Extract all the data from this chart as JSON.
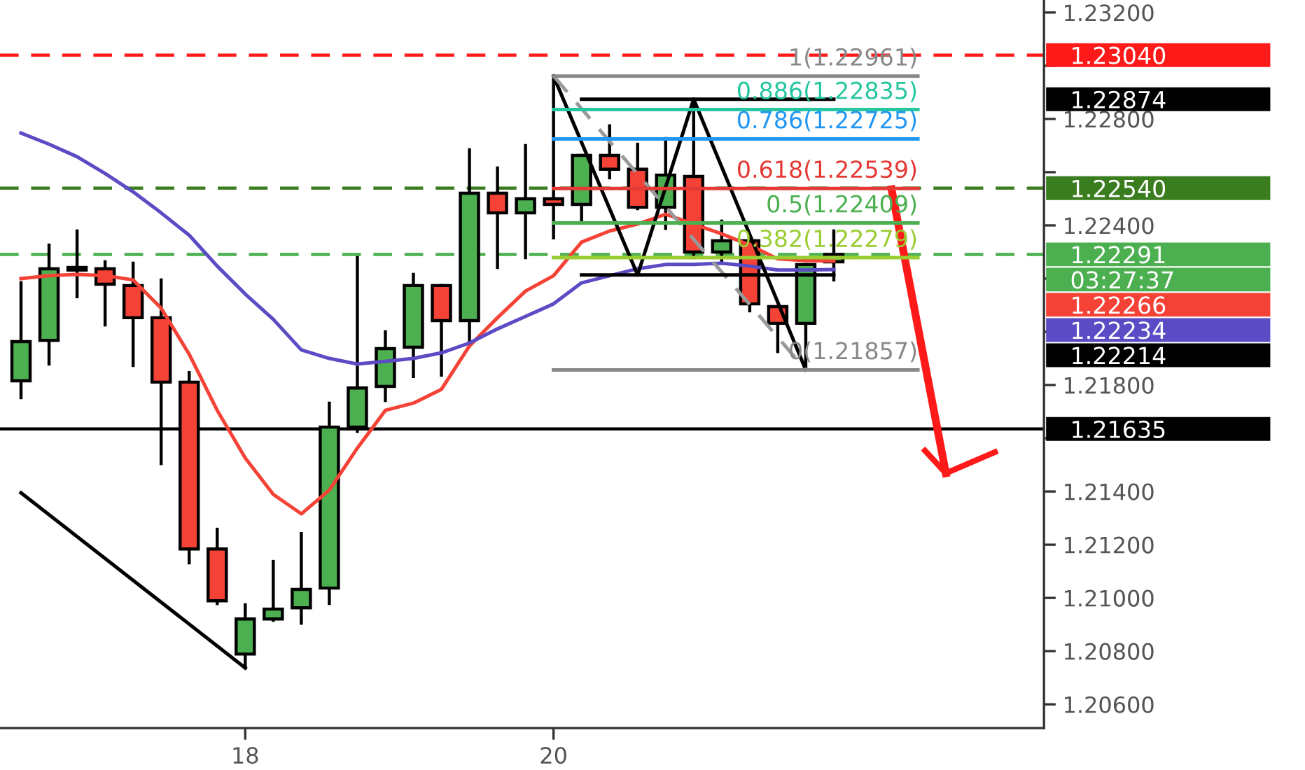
{
  "chart_data": {
    "type": "candlestick",
    "categories": [
      null,
      null,
      null,
      null,
      null,
      null,
      null,
      null,
      "18",
      null,
      null,
      null,
      null,
      null,
      null,
      null,
      null,
      null,
      null,
      "20",
      null,
      null,
      null,
      null,
      null,
      null,
      null,
      null,
      null,
      null,
      null,
      null,
      null,
      null,
      null,
      null,
      null
    ],
    "ohlc": [
      [
        1.21816,
        1.22184,
        1.21753,
        1.21963
      ],
      [
        1.21968,
        1.22326,
        1.21879,
        1.22237
      ],
      [
        1.22232,
        1.22379,
        1.22132,
        1.22242
      ],
      [
        1.22237,
        1.22263,
        1.22026,
        1.22179
      ],
      [
        1.22174,
        1.22258,
        1.21874,
        1.22053
      ],
      [
        1.22053,
        1.22195,
        1.21505,
        1.21811
      ],
      [
        1.21811,
        1.21847,
        1.21132,
        1.21184
      ],
      [
        1.21184,
        1.21258,
        1.20979,
        1.20989
      ],
      [
        1.20789,
        1.20974,
        1.20737,
        1.20921
      ],
      [
        1.20921,
        1.21137,
        1.20916,
        1.20958
      ],
      [
        1.20963,
        1.21242,
        1.20905,
        1.21032
      ],
      [
        1.21037,
        1.21732,
        1.20979,
        1.21642
      ],
      [
        1.21642,
        1.22279,
        1.21626,
        1.21789
      ],
      [
        1.21795,
        1.22,
        1.21742,
        1.21937
      ],
      [
        1.21942,
        1.22216,
        1.21832,
        1.22174
      ],
      [
        1.22174,
        1.22174,
        1.21837,
        1.22042
      ],
      [
        1.22042,
        1.22684,
        1.21947,
        1.22521
      ],
      [
        1.22521,
        1.22616,
        1.22242,
        1.22447
      ],
      [
        1.22447,
        1.227,
        1.22279,
        1.225
      ],
      [
        1.225,
        1.22961,
        1.22353,
        1.22479
      ],
      [
        1.22479,
        1.22663,
        1.22421,
        1.22663
      ],
      [
        1.22663,
        1.22774,
        1.22579,
        1.22611
      ],
      [
        1.22611,
        1.22705,
        1.22463,
        1.22468
      ],
      [
        1.22468,
        1.22726,
        1.22389,
        1.22589
      ],
      [
        1.22584,
        1.22874,
        1.22279,
        1.223
      ],
      [
        1.223,
        1.22416,
        1.22263,
        1.22342
      ],
      [
        1.22342,
        1.22353,
        1.22079,
        1.22105
      ],
      [
        1.22095,
        1.22095,
        1.21926,
        1.22032
      ],
      [
        1.22032,
        1.22253,
        1.21857,
        1.22253
      ],
      [
        1.22263,
        1.22379,
        1.22195,
        1.22291
      ],
      null,
      null,
      null,
      null,
      null,
      null,
      null
    ],
    "colors": [
      "#4caf50",
      "#4caf50",
      "#4caf50",
      "#f44336",
      "#f44336",
      "#f44336",
      "#f44336",
      "#f44336",
      "#4caf50",
      "#4caf50",
      "#4caf50",
      "#4caf50",
      "#4caf50",
      "#4caf50",
      "#4caf50",
      "#f44336",
      "#4caf50",
      "#f44336",
      "#4caf50",
      "#f44336",
      "#4caf50",
      "#f44336",
      "#f44336",
      "#4caf50",
      "#f44336",
      "#4caf50",
      "#f44336",
      "#f44336",
      "#4caf50",
      "#4caf50",
      null,
      null,
      null,
      null,
      null,
      null,
      null
    ],
    "series": [
      {
        "type": "line",
        "color": "#f44336",
        "values": [
          1.222,
          1.22211,
          1.22216,
          1.22211,
          1.22195,
          1.22089,
          1.21916,
          1.21705,
          1.21526,
          1.21389,
          1.21316,
          1.21405,
          1.21563,
          1.21705,
          1.21732,
          1.21784,
          1.21947,
          1.22053,
          1.22153,
          1.22211,
          1.22337,
          1.22379,
          1.22405,
          1.22442,
          1.22405,
          1.22368,
          1.22326,
          1.22274,
          1.22268,
          1.22266,
          null,
          null,
          null,
          null,
          null,
          null,
          null
        ]
      },
      {
        "type": "line",
        "color": "#5b4bc4",
        "values": [
          1.22747,
          1.22705,
          1.22658,
          1.22595,
          1.22526,
          1.22447,
          1.22363,
          1.22247,
          1.22142,
          1.22047,
          1.21932,
          1.219,
          1.21879,
          1.21889,
          1.219,
          1.21921,
          1.21958,
          1.22011,
          1.22058,
          1.22105,
          1.22184,
          1.22211,
          1.22237,
          1.22253,
          1.22253,
          1.22258,
          1.22247,
          1.22232,
          1.22232,
          1.22234,
          null,
          null,
          null,
          null,
          null,
          null,
          null
        ]
      },
      {
        "type": "line",
        "color": "#000000",
        "values": [
          1.21395,
          null,
          null,
          null,
          null,
          null,
          null,
          null,
          1.20737,
          null,
          null,
          null,
          null,
          null,
          null,
          null,
          null,
          null,
          null,
          null,
          null,
          null,
          null,
          null,
          null,
          null,
          null,
          null,
          null,
          null,
          null,
          null,
          null,
          null,
          null,
          null,
          null
        ]
      },
      {
        "type": "line",
        "color": "#000000",
        "values": [
          null,
          null,
          null,
          null,
          null,
          null,
          null,
          null,
          null,
          null,
          null,
          null,
          null,
          null,
          null,
          null,
          null,
          null,
          null,
          1.22961,
          null,
          null,
          1.22214,
          null,
          1.22874,
          null,
          null,
          null,
          1.21857,
          null,
          null,
          null,
          null,
          null,
          null,
          null,
          null
        ]
      },
      {
        "type": "line",
        "color": "#999999",
        "line_style": "dashed",
        "values": [
          null,
          null,
          null,
          null,
          null,
          null,
          null,
          null,
          null,
          null,
          null,
          null,
          null,
          null,
          null,
          null,
          null,
          null,
          null,
          1.22961,
          null,
          null,
          null,
          null,
          null,
          null,
          null,
          null,
          1.21857,
          null,
          null,
          null,
          null,
          null,
          null,
          null,
          null
        ]
      },
      {
        "type": "line",
        "color": "#000000",
        "values": [
          null,
          null,
          null,
          null,
          null,
          null,
          null,
          null,
          null,
          null,
          null,
          null,
          null,
          null,
          null,
          null,
          null,
          null,
          null,
          null,
          1.22874,
          1.22874,
          1.22874,
          1.22874,
          1.22874,
          1.22874,
          1.22874,
          1.22874,
          1.22874,
          1.22874,
          null,
          null,
          null,
          null,
          null,
          null,
          null
        ]
      },
      {
        "type": "line",
        "color": "#000000",
        "values": [
          null,
          null,
          null,
          null,
          null,
          null,
          null,
          null,
          null,
          null,
          null,
          null,
          null,
          null,
          null,
          null,
          null,
          null,
          null,
          null,
          1.22214,
          1.22214,
          1.22214,
          1.22214,
          1.22214,
          1.22214,
          1.22214,
          1.22214,
          1.22214,
          1.22214,
          null,
          null,
          null,
          null,
          null,
          null,
          null
        ]
      },
      {
        "type": "line",
        "name": "1(1.22961)",
        "color": "#888888",
        "values": [
          null,
          null,
          null,
          null,
          null,
          null,
          null,
          null,
          null,
          null,
          null,
          null,
          null,
          null,
          null,
          null,
          null,
          null,
          null,
          1.22961,
          1.22961,
          1.22961,
          1.22961,
          1.22961,
          1.22961,
          1.22961,
          1.22961,
          1.22961,
          1.22961,
          1.22961,
          1.22961,
          1.22961,
          1.22961,
          null,
          null,
          null,
          null
        ]
      },
      {
        "type": "line",
        "name": "0.886(1.22835)",
        "color": "#26c6a0",
        "values": [
          null,
          null,
          null,
          null,
          null,
          null,
          null,
          null,
          null,
          null,
          null,
          null,
          null,
          null,
          null,
          null,
          null,
          null,
          null,
          1.22835,
          1.22835,
          1.22835,
          1.22835,
          1.22835,
          1.22835,
          1.22835,
          1.22835,
          1.22835,
          1.22835,
          1.22835,
          1.22835,
          1.22835,
          1.22835,
          null,
          null,
          null,
          null
        ]
      },
      {
        "type": "line",
        "name": "0.786(1.22725)",
        "color": "#2196f3",
        "values": [
          null,
          null,
          null,
          null,
          null,
          null,
          null,
          null,
          null,
          null,
          null,
          null,
          null,
          null,
          null,
          null,
          null,
          null,
          null,
          1.22725,
          1.22725,
          1.22725,
          1.22725,
          1.22725,
          1.22725,
          1.22725,
          1.22725,
          1.22725,
          1.22725,
          1.22725,
          1.22725,
          1.22725,
          1.22725,
          null,
          null,
          null,
          null
        ]
      },
      {
        "type": "line",
        "name": "0.618(1.22539)",
        "color": "#e53935",
        "values": [
          null,
          null,
          null,
          null,
          null,
          null,
          null,
          null,
          null,
          null,
          null,
          null,
          null,
          null,
          null,
          null,
          null,
          null,
          null,
          1.22539,
          1.22539,
          1.22539,
          1.22539,
          1.22539,
          1.22539,
          1.22539,
          1.22539,
          1.22539,
          1.22539,
          1.22539,
          1.22539,
          1.22539,
          1.22539,
          null,
          null,
          null,
          null
        ]
      },
      {
        "type": "line",
        "name": "0.5(1.22409)",
        "color": "#4caf50",
        "values": [
          null,
          null,
          null,
          null,
          null,
          null,
          null,
          null,
          null,
          null,
          null,
          null,
          null,
          null,
          null,
          null,
          null,
          null,
          null,
          1.22409,
          1.22409,
          1.22409,
          1.22409,
          1.22409,
          1.22409,
          1.22409,
          1.22409,
          1.22409,
          1.22409,
          1.22409,
          1.22409,
          1.22409,
          1.22409,
          null,
          null,
          null,
          null
        ]
      },
      {
        "type": "line",
        "name": "0.382(1.22279)",
        "color": "#9acd32",
        "values": [
          null,
          null,
          null,
          null,
          null,
          null,
          null,
          null,
          null,
          null,
          null,
          null,
          null,
          null,
          null,
          null,
          null,
          null,
          null,
          1.22279,
          1.22279,
          1.22279,
          1.22279,
          1.22279,
          1.22279,
          1.22279,
          1.22279,
          1.22279,
          1.22279,
          1.22279,
          1.22279,
          1.22279,
          1.22279,
          null,
          null,
          null,
          null
        ]
      },
      {
        "type": "line",
        "name": "0(1.21857)",
        "color": "#888888",
        "values": [
          null,
          null,
          null,
          null,
          null,
          null,
          null,
          null,
          null,
          null,
          null,
          null,
          null,
          null,
          null,
          null,
          null,
          null,
          null,
          1.21857,
          1.21857,
          1.21857,
          1.21857,
          1.21857,
          1.21857,
          1.21857,
          1.21857,
          1.21857,
          1.21857,
          1.21857,
          1.21857,
          1.21857,
          1.21857,
          null,
          null,
          null,
          null
        ]
      }
    ],
    "ref_lines": [
      {
        "axis": "y",
        "value": 1.2304,
        "label": "1.23040",
        "color": "#ff1a1a",
        "line_style": "dashed"
      },
      {
        "axis": "y",
        "value": 1.2254,
        "label": "1.22540",
        "color": "#3a7d1f",
        "line_style": "dashed"
      },
      {
        "axis": "y",
        "value": 1.22291,
        "label": "1.22291\n03:27:37",
        "color": "#4caf50",
        "line_style": "dashed"
      },
      {
        "axis": "y",
        "value": 1.21635,
        "label": "1.21635",
        "color": "#000000",
        "line_style": "solid"
      }
    ],
    "annotations": [
      "1.22266",
      "1.22234",
      "1.22874",
      "1.22214"
    ],
    "ylim": [
      1.20511,
      1.23247
    ],
    "yticks": [
      {
        "value": 1.206,
        "label": "1.20600"
      },
      {
        "value": 1.208,
        "label": "1.20800"
      },
      {
        "value": 1.21,
        "label": "1.21000"
      },
      {
        "value": 1.212,
        "label": "1.21200"
      },
      {
        "value": 1.214,
        "label": "1.21400"
      },
      {
        "value": 1.216,
        "label": null
      },
      {
        "value": 1.218,
        "label": "1.21800"
      },
      {
        "value": 1.22,
        "label": null
      },
      {
        "value": 1.222,
        "label": null
      },
      {
        "value": 1.224,
        "label": "1.22400"
      },
      {
        "value": 1.226,
        "label": null
      },
      {
        "value": 1.228,
        "label": "1.22800"
      },
      {
        "value": 1.23,
        "label": null
      },
      {
        "value": 1.232,
        "label": "1.23200"
      }
    ]
  }
}
